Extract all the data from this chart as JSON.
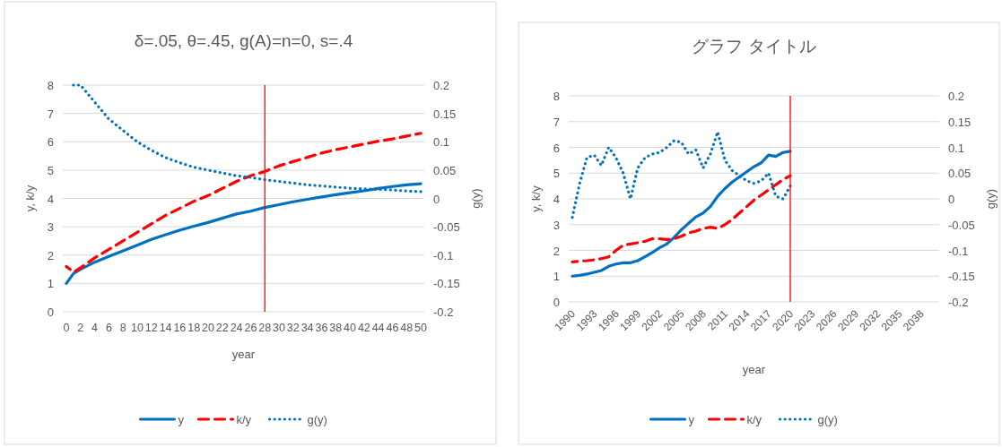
{
  "chart_data": [
    {
      "type": "line",
      "title": "δ=.05, θ=.45, g(A)=n=0, s=.4",
      "xlabel": "year",
      "ylabel": "y, k/y",
      "y2label": "g(y)",
      "x": [
        0,
        1,
        2,
        4,
        6,
        8,
        10,
        12,
        14,
        16,
        18,
        20,
        22,
        24,
        26,
        28,
        30,
        32,
        34,
        36,
        38,
        40,
        42,
        44,
        46,
        48,
        50
      ],
      "series": [
        {
          "name": "y",
          "color": "#0070c0",
          "line_style": "solid",
          "values": [
            1.0,
            1.35,
            1.5,
            1.75,
            1.95,
            2.15,
            2.35,
            2.55,
            2.72,
            2.88,
            3.02,
            3.15,
            3.3,
            3.45,
            3.55,
            3.68,
            3.78,
            3.88,
            3.97,
            4.05,
            4.13,
            4.2,
            4.27,
            4.35,
            4.42,
            4.48,
            4.52
          ]
        },
        {
          "name": "k/y",
          "color": "#ff0000",
          "line_style": "dashed",
          "values": [
            1.6,
            1.4,
            1.55,
            1.9,
            2.2,
            2.5,
            2.8,
            3.1,
            3.4,
            3.65,
            3.9,
            4.1,
            4.35,
            4.6,
            4.8,
            4.95,
            5.15,
            5.3,
            5.45,
            5.6,
            5.72,
            5.82,
            5.92,
            6.02,
            6.1,
            6.2,
            6.3
          ]
        },
        {
          "name": "g(y)",
          "color": "#0070c0",
          "line_style": "dotted",
          "axis": "y2",
          "values": [
            null,
            0.2,
            0.2,
            0.17,
            0.14,
            0.12,
            0.1,
            0.085,
            0.072,
            0.063,
            0.055,
            0.05,
            0.045,
            0.04,
            0.037,
            0.033,
            0.03,
            0.027,
            0.024,
            0.022,
            0.02,
            0.018,
            0.017,
            0.016,
            0.015,
            0.013,
            0.012
          ]
        }
      ],
      "xlim": [
        -0.5,
        50.5
      ],
      "xticks": [
        0,
        2,
        4,
        6,
        8,
        10,
        12,
        14,
        16,
        18,
        20,
        22,
        24,
        26,
        28,
        30,
        32,
        34,
        36,
        38,
        40,
        42,
        44,
        46,
        48,
        50
      ],
      "ylim": [
        0,
        8
      ],
      "yticks": [
        0,
        1,
        2,
        3,
        4,
        5,
        6,
        7,
        8
      ],
      "y2lim": [
        -0.2,
        0.2
      ],
      "y2ticks": [
        -0.2,
        -0.15,
        -0.1,
        -0.05,
        0,
        0.05,
        0.1,
        0.15,
        0.2
      ],
      "ref_lines": [
        {
          "axis": "x",
          "value": 28,
          "color": "#ff0000"
        }
      ],
      "grid": "y",
      "legend": "bottom"
    },
    {
      "type": "line",
      "title": "グラフ タイトル",
      "xlabel": "year",
      "ylabel": "y, k/y",
      "y2label": "g(y)",
      "x": [
        1990,
        1991,
        1992,
        1993,
        1994,
        1995,
        1996,
        1997,
        1998,
        1999,
        2000,
        2001,
        2002,
        2003,
        2004,
        2005,
        2006,
        2007,
        2008,
        2009,
        2010,
        2011,
        2012,
        2013,
        2014,
        2015,
        2016,
        2017,
        2018,
        2019,
        2020
      ],
      "series": [
        {
          "name": "y",
          "color": "#0070c0",
          "line_style": "solid",
          "values": [
            1.0,
            1.03,
            1.08,
            1.15,
            1.22,
            1.38,
            1.47,
            1.52,
            1.52,
            1.6,
            1.75,
            1.92,
            2.1,
            2.25,
            2.5,
            2.8,
            3.05,
            3.3,
            3.45,
            3.7,
            4.1,
            4.4,
            4.65,
            4.85,
            5.05,
            5.25,
            5.4,
            5.7,
            5.65,
            5.8,
            5.85
          ]
        },
        {
          "name": "k/y",
          "color": "#ff0000",
          "line_style": "dashed",
          "values": [
            1.55,
            1.58,
            1.6,
            1.63,
            1.68,
            1.75,
            2.0,
            2.2,
            2.25,
            2.3,
            2.35,
            2.45,
            2.45,
            2.42,
            2.45,
            2.55,
            2.68,
            2.75,
            2.85,
            2.9,
            2.85,
            3.0,
            3.2,
            3.45,
            3.7,
            3.95,
            4.15,
            4.35,
            4.55,
            4.75,
            4.9
          ]
        },
        {
          "name": "g(y)",
          "color": "#0070c0",
          "line_style": "dotted",
          "axis": "y2",
          "values": [
            -0.036,
            0.03,
            0.08,
            0.085,
            0.065,
            0.1,
            0.08,
            0.05,
            0.0,
            0.06,
            0.08,
            0.087,
            0.09,
            0.1,
            0.113,
            0.11,
            0.087,
            0.095,
            0.06,
            0.087,
            0.13,
            0.075,
            0.055,
            0.045,
            0.035,
            0.03,
            0.035,
            0.05,
            0.005,
            0.0,
            0.025
          ]
        }
      ],
      "xlim": [
        1989.5,
        2040.5
      ],
      "xticks": [
        1990,
        1993,
        1996,
        1999,
        2002,
        2005,
        2008,
        2011,
        2014,
        2017,
        2020,
        2023,
        2026,
        2029,
        2032,
        2035,
        2038
      ],
      "ylim": [
        0,
        8
      ],
      "yticks": [
        0,
        1,
        2,
        3,
        4,
        5,
        6,
        7,
        8
      ],
      "y2lim": [
        -0.2,
        0.2
      ],
      "y2ticks": [
        -0.2,
        -0.15,
        -0.1,
        -0.05,
        0,
        0.05,
        0.1,
        0.15,
        0.2
      ],
      "ref_lines": [
        {
          "axis": "x",
          "value": 2020,
          "color": "#ff0000"
        }
      ],
      "grid": "y",
      "legend": "bottom"
    }
  ]
}
